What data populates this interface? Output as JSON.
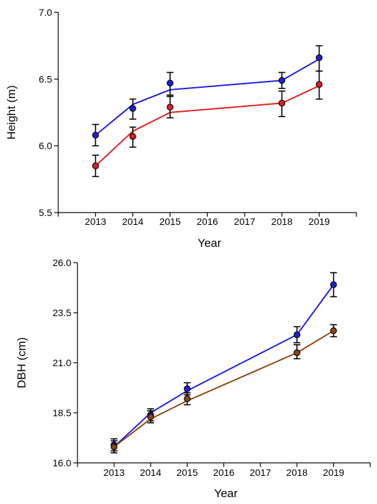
{
  "chart_data": [
    {
      "type": "line",
      "title": "",
      "xlabel": "Year",
      "ylabel": "Height (m)",
      "x_range": [
        2012,
        2020
      ],
      "ylim": [
        5.5,
        7.0
      ],
      "categories": [
        "2013",
        "2014",
        "2015",
        "2016",
        "2017",
        "2018",
        "2019"
      ],
      "yticks": [
        "5.5",
        "6.0",
        "6.5",
        "7.0"
      ],
      "grid": false,
      "legend": "none",
      "series": [
        {
          "color": "#1f1fe0",
          "points": [
            {
              "x": 2013,
              "y": 6.08,
              "lo": 6.0,
              "hi": 6.16
            },
            {
              "x": 2014,
              "y": 6.28,
              "lo": 6.2,
              "hi": 6.35
            },
            {
              "x": 2015,
              "y": 6.47,
              "lo": 6.38,
              "hi": 6.55
            },
            {
              "x": 2018,
              "y": 6.49,
              "lo": 6.43,
              "hi": 6.55
            },
            {
              "x": 2019,
              "y": 6.66,
              "lo": 6.56,
              "hi": 6.75
            }
          ],
          "fit": [
            [
              2013,
              6.08
            ],
            [
              2014,
              6.31
            ],
            [
              2015,
              6.42
            ],
            [
              2018,
              6.49
            ],
            [
              2019,
              6.65
            ]
          ]
        },
        {
          "color": "#e01f1f",
          "points": [
            {
              "x": 2013,
              "y": 5.85,
              "lo": 5.77,
              "hi": 5.93
            },
            {
              "x": 2014,
              "y": 6.07,
              "lo": 5.99,
              "hi": 6.14
            },
            {
              "x": 2015,
              "y": 6.29,
              "lo": 6.21,
              "hi": 6.37
            },
            {
              "x": 2018,
              "y": 6.32,
              "lo": 6.22,
              "hi": 6.41
            },
            {
              "x": 2019,
              "y": 6.46,
              "lo": 6.35,
              "hi": 6.56
            }
          ],
          "fit": [
            [
              2013,
              5.85
            ],
            [
              2014,
              6.11
            ],
            [
              2015,
              6.25
            ],
            [
              2018,
              6.32
            ],
            [
              2019,
              6.45
            ]
          ]
        }
      ]
    },
    {
      "type": "line",
      "title": "",
      "xlabel": "Year",
      "ylabel": "DBH (cm)",
      "x_range": [
        2012,
        2020
      ],
      "ylim": [
        16.0,
        26.0
      ],
      "categories": [
        "2013",
        "2014",
        "2015",
        "2016",
        "2017",
        "2018",
        "2019"
      ],
      "yticks": [
        "16.0",
        "18.5",
        "21.0",
        "23.5",
        "26.0"
      ],
      "grid": false,
      "legend": "none",
      "series": [
        {
          "color": "#1f1fe0",
          "points": [
            {
              "x": 2013,
              "y": 16.9,
              "lo": 16.6,
              "hi": 17.2
            },
            {
              "x": 2014,
              "y": 18.4,
              "lo": 18.1,
              "hi": 18.7
            },
            {
              "x": 2015,
              "y": 19.7,
              "lo": 19.4,
              "hi": 20.0
            },
            {
              "x": 2018,
              "y": 22.4,
              "lo": 22.0,
              "hi": 22.8
            },
            {
              "x": 2019,
              "y": 24.9,
              "lo": 24.3,
              "hi": 25.5
            }
          ],
          "fit": [
            [
              2013,
              16.8
            ],
            [
              2014,
              18.5
            ],
            [
              2015,
              19.6
            ],
            [
              2018,
              22.4
            ],
            [
              2019,
              24.9
            ]
          ]
        },
        {
          "color": "#8b4513",
          "points": [
            {
              "x": 2013,
              "y": 16.8,
              "lo": 16.5,
              "hi": 17.1
            },
            {
              "x": 2014,
              "y": 18.3,
              "lo": 18.0,
              "hi": 18.6
            },
            {
              "x": 2015,
              "y": 19.2,
              "lo": 18.9,
              "hi": 19.5
            },
            {
              "x": 2018,
              "y": 21.5,
              "lo": 21.2,
              "hi": 21.9
            },
            {
              "x": 2019,
              "y": 22.6,
              "lo": 22.3,
              "hi": 22.9
            }
          ],
          "fit": [
            [
              2013,
              16.8
            ],
            [
              2014,
              18.2
            ],
            [
              2015,
              19.1
            ],
            [
              2018,
              21.5
            ],
            [
              2019,
              22.6
            ]
          ]
        }
      ]
    }
  ]
}
